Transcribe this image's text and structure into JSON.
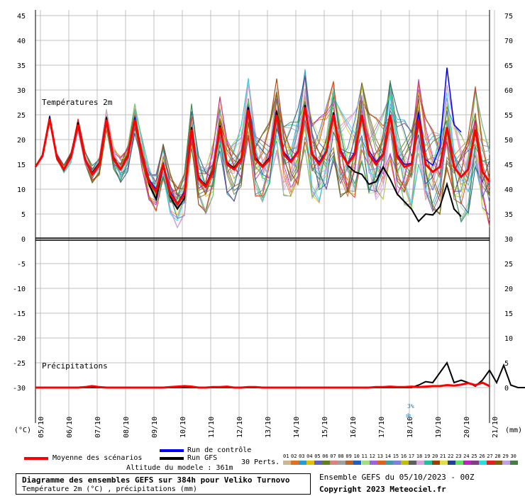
{
  "chart_data": {
    "type": "line",
    "title": "Diagramme des ensembles GEFS sur 384h pour Veliko Turnovo",
    "subtitle": "Température 2m (°C) , précipitations (mm)",
    "panel_labels": {
      "temp": "Températures 2m",
      "precip": "Précipitations"
    },
    "y_left_label": "(°C)",
    "y_right_label": "(mm)",
    "y_left_ticks": [
      "45",
      "40",
      "35",
      "30",
      "25",
      "20",
      "15",
      "10",
      "5",
      "0",
      "-5",
      "-10",
      "-15",
      "-20",
      "-25",
      "-30"
    ],
    "y_right_ticks": [
      "75",
      "70",
      "65",
      "60",
      "55",
      "50",
      "45",
      "40",
      "35",
      "30",
      "25",
      "20",
      "15",
      "10",
      "5",
      "0"
    ],
    "x_ticks": [
      "05/10",
      "06/10",
      "07/10",
      "08/10",
      "09/10",
      "10/10",
      "11/10",
      "12/10",
      "13/10",
      "14/10",
      "15/10",
      "16/10",
      "17/10",
      "18/10",
      "19/10",
      "20/10",
      "21/10"
    ],
    "temp_ylim": [
      0,
      45
    ],
    "precip_ylim": [
      0,
      30
    ],
    "time_step_hours": 6,
    "mean_temperature": [
      14.5,
      16.8,
      24.2,
      16.5,
      14.0,
      16.5,
      23.0,
      16.0,
      13.0,
      15.0,
      24.0,
      16.0,
      14.0,
      16.5,
      24.0,
      17.0,
      11.5,
      9.5,
      15.0,
      9.0,
      7.0,
      9.0,
      22.0,
      12.0,
      10.5,
      13.5,
      22.5,
      15.0,
      14.0,
      16.0,
      26.0,
      16.0,
      14.5,
      16.0,
      25.0,
      17.0,
      15.5,
      17.5,
      26.5,
      17.0,
      15.0,
      17.5,
      25.0,
      17.5,
      15.0,
      17.0,
      25.0,
      17.0,
      15.0,
      17.0,
      25.0,
      16.5,
      14.5,
      15.0,
      24.0,
      15.0,
      13.5,
      14.5,
      22.5,
      14.5,
      12.5,
      14.0,
      22.0,
      13.5,
      11.5
    ],
    "gfs_temperature": [
      14.5,
      16.8,
      24.5,
      16.3,
      14.0,
      16.8,
      23.5,
      16.0,
      13.3,
      15.3,
      24.5,
      16.3,
      14.0,
      16.8,
      24.0,
      17.0,
      11.0,
      8.0,
      14.8,
      8.5,
      6.0,
      8.2,
      22.5,
      12.2,
      10.8,
      13.8,
      22.8,
      15.2,
      14.3,
      16.3,
      26.5,
      16.3,
      14.7,
      16.4,
      25.8,
      17.2,
      15.5,
      17.5,
      27.0,
      17.2,
      15.2,
      17.5,
      25.5,
      17.8,
      14.8,
      13.5,
      13.0,
      11.0,
      11.5,
      14.5,
      12.0,
      9.0,
      7.5,
      6.0,
      3.5,
      5.0,
      4.8,
      6.5,
      11.0,
      6.0,
      4.5
    ],
    "control_temperature": [
      14.5,
      16.5,
      24.8,
      16.8,
      13.8,
      16.3,
      23.3,
      16.2,
      13.2,
      15.2,
      24.2,
      16.0,
      14.2,
      16.6,
      24.5,
      17.2,
      12.0,
      10.0,
      15.2,
      9.5,
      7.2,
      9.5,
      22.0,
      12.5,
      10.5,
      13.2,
      22.0,
      15.5,
      14.2,
      16.2,
      25.5,
      16.5,
      14.5,
      15.8,
      24.8,
      17.5,
      15.8,
      17.8,
      26.0,
      17.0,
      15.5,
      17.8,
      24.5,
      18.0,
      15.2,
      17.5,
      24.8,
      17.8,
      15.5,
      17.2,
      25.0,
      17.0,
      15.0,
      15.2,
      25.5,
      16.0,
      14.8,
      18.5,
      34.5,
      23.0,
      21.5
    ],
    "gfs_precipitation": [
      0,
      0,
      0,
      0,
      0,
      0,
      0,
      0,
      0,
      0,
      0,
      0,
      0,
      0,
      0,
      0,
      0,
      0,
      0,
      0,
      0,
      0,
      0,
      0,
      0,
      0,
      0,
      0,
      0,
      0,
      0,
      0,
      0,
      0,
      0,
      0,
      0,
      0,
      0,
      0,
      0,
      0,
      0,
      0,
      0,
      0,
      0,
      0,
      0,
      0,
      0,
      0,
      0,
      0,
      0.5,
      1.2,
      1.0,
      3.0,
      5.0,
      1.0,
      1.5,
      1.0,
      0.3,
      1.5,
      3.5,
      1.0,
      4.5,
      0.5,
      0,
      0
    ],
    "mean_precipitation": [
      0,
      0,
      0,
      0,
      0,
      0,
      0,
      0.1,
      0.3,
      0.1,
      0,
      0,
      0,
      0,
      0,
      0,
      0,
      0,
      0,
      0.1,
      0.2,
      0.3,
      0.2,
      0,
      0,
      0.1,
      0.1,
      0.2,
      0,
      0,
      0.1,
      0.1,
      0,
      0,
      0,
      0,
      0,
      0,
      0,
      0,
      0,
      0,
      0,
      0,
      0,
      0,
      0,
      0,
      0.1,
      0.1,
      0.2,
      0.1,
      0.1,
      0.2,
      0.1,
      0.2,
      0.3,
      0.3,
      0.5,
      0.4,
      0.6,
      0.9,
      0.5,
      1.0,
      0.3
    ],
    "snow_indicator": {
      "label": "3%",
      "day_label": "18/10"
    },
    "legend": {
      "mean": "Moyenne des scénarios",
      "control": "Run de contrôle",
      "gfs": "Run GFS",
      "perturbations": "30 Perts."
    },
    "model_altitude": "Altitude du modele : 361m",
    "ensemble_run": "Ensemble GEFS du 05/10/2023 - 00Z",
    "copyright": "Copyright 2023 Meteociel.fr",
    "perturbation_numbers": [
      "01",
      "02",
      "03",
      "04",
      "05",
      "06",
      "07",
      "08",
      "09",
      "10",
      "11",
      "12",
      "13",
      "14",
      "15",
      "16",
      "17",
      "18",
      "19",
      "20",
      "21",
      "22",
      "23",
      "24",
      "25",
      "26",
      "27",
      "28",
      "29",
      "30"
    ],
    "perturbation_colors": [
      "#c8b896",
      "#e07020",
      "#20a0d8",
      "#e0c000",
      "#6060c0",
      "#608020",
      "#e08080",
      "#a0a0a0",
      "#c06020",
      "#2060c0",
      "#a0e080",
      "#a060e0",
      "#e06020",
      "#40a0a0",
      "#8080e0",
      "#c0c000",
      "#606060",
      "#e0a0e0",
      "#20c0a0",
      "#a04000",
      "#e0e040",
      "#2040a0",
      "#60e060",
      "#c020c0",
      "#804080",
      "#20e0e0",
      "#e02020",
      "#806000",
      "#c0a0e0",
      "#408040"
    ],
    "colors": {
      "mean": "#ff0000",
      "control": "#0000ff",
      "gfs": "#000000",
      "zero_line": "#000000",
      "grid": "#c0c0c0"
    }
  }
}
